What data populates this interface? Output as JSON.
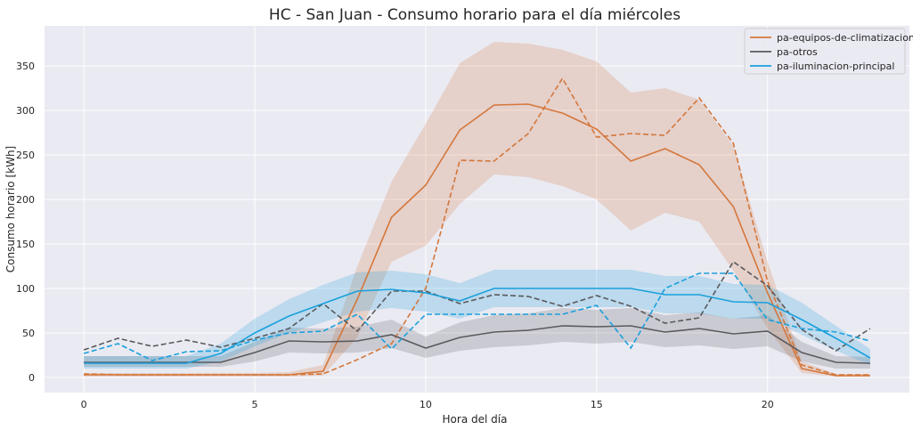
{
  "chart_data": {
    "type": "line",
    "title": "HC - San Juan - Consumo horario para el día miércoles",
    "xlabel": "Hora del día",
    "ylabel": "Consumo horario [kWh]",
    "xlim": [
      -1.15,
      24.15
    ],
    "ylim": [
      -17,
      395
    ],
    "x_ticks": [
      0,
      5,
      10,
      15,
      20
    ],
    "y_ticks": [
      0,
      50,
      100,
      150,
      200,
      250,
      300,
      350
    ],
    "grid": true,
    "legend_position": "top-right",
    "x": [
      0,
      1,
      2,
      3,
      4,
      5,
      6,
      7,
      8,
      9,
      10,
      11,
      12,
      13,
      14,
      15,
      16,
      17,
      18,
      19,
      20,
      21,
      22,
      23
    ],
    "series": [
      {
        "name": "pa-equipos-de-climatizacion",
        "color": "#d4773b",
        "mean": [
          3,
          3,
          3,
          3,
          3,
          3,
          3,
          7,
          88,
          180,
          216,
          278,
          306,
          307,
          297,
          279,
          243,
          257,
          239,
          192,
          95,
          10,
          2,
          2
        ],
        "ci_low": [
          1,
          1,
          1,
          1,
          1,
          1,
          1,
          2,
          45,
          130,
          148,
          195,
          228,
          225,
          215,
          200,
          165,
          185,
          175,
          120,
          55,
          5,
          1,
          1
        ],
        "ci_high": [
          5,
          5,
          5,
          5,
          5,
          5,
          6,
          14,
          125,
          220,
          285,
          353,
          377,
          375,
          368,
          355,
          320,
          325,
          312,
          260,
          130,
          18,
          4,
          4
        ],
        "dashed": [
          4,
          3,
          3,
          3,
          3,
          3,
          3,
          4,
          20,
          38,
          100,
          244,
          243,
          274,
          336,
          270,
          274,
          272,
          314,
          263,
          108,
          14,
          3,
          3
        ]
      },
      {
        "name": "pa-otros",
        "color": "#5a5a5e",
        "mean": [
          17,
          17,
          17,
          17,
          17,
          28,
          41,
          40,
          41,
          48,
          33,
          45,
          51,
          53,
          58,
          57,
          58,
          51,
          55,
          49,
          52,
          28,
          17,
          16
        ],
        "ci_low": [
          12,
          12,
          12,
          12,
          12,
          18,
          28,
          27,
          28,
          33,
          22,
          30,
          34,
          36,
          40,
          38,
          40,
          34,
          36,
          32,
          35,
          18,
          10,
          10
        ],
        "ci_high": [
          24,
          24,
          24,
          24,
          24,
          40,
          56,
          55,
          57,
          65,
          46,
          62,
          70,
          72,
          78,
          76,
          78,
          70,
          73,
          66,
          70,
          40,
          24,
          23
        ],
        "dashed": [
          31,
          44,
          35,
          42,
          34,
          44,
          55,
          83,
          52,
          97,
          97,
          83,
          93,
          91,
          80,
          92,
          80,
          61,
          67,
          130,
          103,
          54,
          30,
          55
        ]
      },
      {
        "name": "pa-iluminacion-principal",
        "color": "#1aa0dc",
        "mean": [
          16,
          16,
          16,
          16,
          27,
          50,
          69,
          83,
          97,
          99,
          95,
          86,
          100,
          100,
          100,
          100,
          100,
          93,
          93,
          85,
          84,
          65,
          44,
          22
        ],
        "ci_low": [
          10,
          10,
          10,
          10,
          18,
          35,
          50,
          62,
          74,
          78,
          74,
          66,
          79,
          79,
          79,
          79,
          79,
          72,
          72,
          66,
          66,
          48,
          30,
          14
        ],
        "ci_high": [
          24,
          24,
          24,
          24,
          38,
          66,
          88,
          104,
          118,
          120,
          116,
          106,
          121,
          121,
          121,
          121,
          121,
          114,
          114,
          105,
          104,
          84,
          58,
          32
        ],
        "dashed": [
          27,
          38,
          19,
          29,
          30,
          42,
          50,
          52,
          71,
          32,
          71,
          71,
          71,
          71,
          71,
          81,
          33,
          100,
          117,
          117,
          65,
          55,
          51,
          41
        ]
      }
    ]
  }
}
